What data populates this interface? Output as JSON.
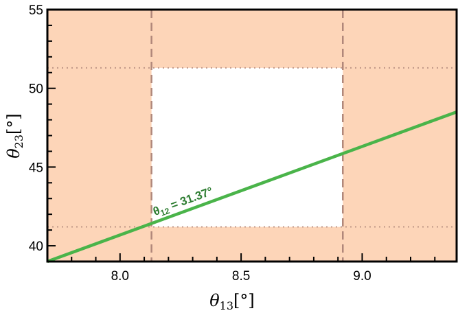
{
  "chart_data": {
    "type": "line",
    "title": "",
    "xlabel": {
      "symbol": "θ",
      "sub": "13",
      "unit": "[°]"
    },
    "ylabel": {
      "symbol": "θ",
      "sub": "23",
      "unit": "[°]"
    },
    "xlim": [
      7.7,
      9.39
    ],
    "ylim": [
      39.0,
      55.0
    ],
    "xticks": [
      "8.0",
      "8.5",
      "9.0"
    ],
    "yticks": [
      "40",
      "45",
      "50",
      "55"
    ],
    "grid": false,
    "allowed_region": {
      "x_range": [
        8.13,
        8.92
      ],
      "y_range": [
        41.2,
        51.3
      ]
    },
    "excluded_color": "#fdd5b8",
    "boundary_color": "#b0877a",
    "series": [
      {
        "color": "#4ab44a",
        "x": [
          7.7,
          9.39
        ],
        "y": [
          39.0,
          48.5
        ]
      }
    ],
    "annotation": {
      "symbol": "θ",
      "sub": "12",
      "text": " = 31.37°",
      "color": "#2e7d32"
    }
  }
}
